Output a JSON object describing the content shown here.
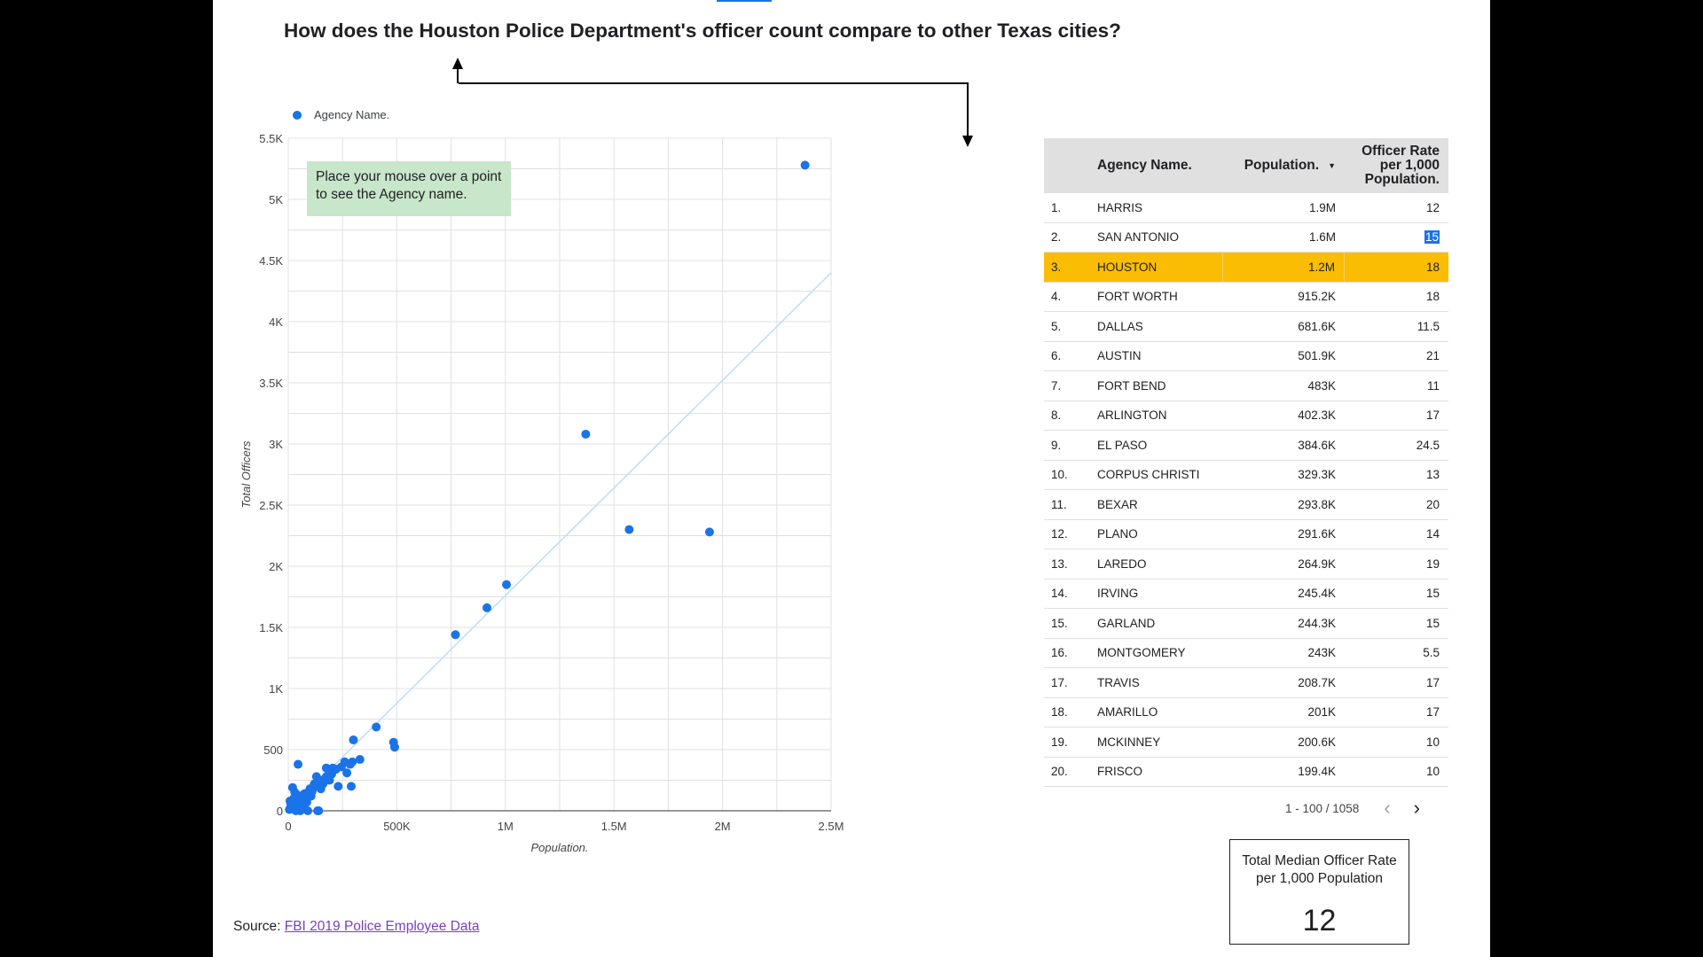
{
  "page": {
    "title": "How does the Houston Police Department's officer count compare to other Texas cities?",
    "hint": "Place your mouse over a point to see the Agency name.",
    "legend_label": "Agency Name.",
    "source_prefix": "Source: ",
    "source_link": "FBI 2019 Police Employee Data"
  },
  "chart_data": {
    "type": "scatter",
    "xlabel": "Population.",
    "ylabel": "Total Officers",
    "xlim": [
      0,
      2500000
    ],
    "ylim": [
      0,
      5500
    ],
    "x_ticks": [
      "0",
      "500K",
      "1M",
      "1.5M",
      "2M",
      "2.5M"
    ],
    "y_ticks": [
      "0",
      "500",
      "1K",
      "1.5K",
      "2K",
      "2.5K",
      "3K",
      "3.5K",
      "4K",
      "4.5K",
      "5K",
      "5.5K"
    ],
    "series_color": "#1a73e8",
    "trendline_color": "#bbdefb",
    "trendline": [
      [
        0,
        0
      ],
      [
        2500000,
        4400
      ]
    ],
    "grid": true,
    "points": [
      [
        2380000,
        5280
      ],
      [
        1370000,
        3080
      ],
      [
        1570000,
        2300
      ],
      [
        1940000,
        2280
      ],
      [
        1005000,
        1850
      ],
      [
        915000,
        1660
      ],
      [
        770000,
        1440
      ],
      [
        405000,
        685
      ],
      [
        485000,
        560
      ],
      [
        490000,
        520
      ],
      [
        300000,
        580
      ],
      [
        330000,
        420
      ],
      [
        295000,
        400
      ],
      [
        285000,
        380
      ],
      [
        245000,
        360
      ],
      [
        270000,
        310
      ],
      [
        205000,
        350
      ],
      [
        200000,
        300
      ],
      [
        175000,
        280
      ],
      [
        155000,
        250
      ],
      [
        140000,
        240
      ],
      [
        120000,
        220
      ],
      [
        100000,
        180
      ],
      [
        90000,
        150
      ],
      [
        80000,
        120
      ],
      [
        60000,
        90
      ],
      [
        45000,
        380
      ],
      [
        290000,
        200
      ],
      [
        20000,
        190
      ],
      [
        30000,
        150
      ],
      [
        25000,
        100
      ],
      [
        40000,
        60
      ],
      [
        50000,
        40
      ],
      [
        15000,
        30
      ],
      [
        10000,
        20
      ],
      [
        5000,
        10
      ],
      [
        70000,
        100
      ],
      [
        110000,
        160
      ],
      [
        135000,
        200
      ],
      [
        160000,
        220
      ],
      [
        190000,
        250
      ],
      [
        260000,
        400
      ],
      [
        175000,
        350
      ],
      [
        130000,
        280
      ],
      [
        35000,
        0
      ],
      [
        55000,
        0
      ],
      [
        90000,
        0
      ],
      [
        135000,
        0
      ],
      [
        140000,
        0
      ],
      [
        65000,
        30
      ],
      [
        85000,
        70
      ],
      [
        150000,
        180
      ],
      [
        220000,
        340
      ],
      [
        230000,
        200
      ],
      [
        105000,
        120
      ],
      [
        12000,
        50
      ],
      [
        8000,
        80
      ],
      [
        42000,
        130
      ],
      [
        58000,
        60
      ],
      [
        75000,
        140
      ]
    ]
  },
  "table": {
    "headers": {
      "name": "Agency Name.",
      "population": "Population.",
      "sort_indicator": "▼",
      "rate_line1": "Officer Rate",
      "rate_line2": "per 1,000",
      "rate_line3": "Population."
    },
    "highlight_color": "#fbbc04",
    "rows": [
      {
        "idx": "1.",
        "name": "HARRIS",
        "population": "1.9M",
        "rate": "12"
      },
      {
        "idx": "2.",
        "name": "SAN ANTONIO",
        "population": "1.6M",
        "rate": "15"
      },
      {
        "idx": "3.",
        "name": "HOUSTON",
        "population": "1.2M",
        "rate": "18"
      },
      {
        "idx": "4.",
        "name": "FORT WORTH",
        "population": "915.2K",
        "rate": "18"
      },
      {
        "idx": "5.",
        "name": "DALLAS",
        "population": "681.6K",
        "rate": "11.5"
      },
      {
        "idx": "6.",
        "name": "AUSTIN",
        "population": "501.9K",
        "rate": "21"
      },
      {
        "idx": "7.",
        "name": "FORT BEND",
        "population": "483K",
        "rate": "11"
      },
      {
        "idx": "8.",
        "name": "ARLINGTON",
        "population": "402.3K",
        "rate": "17"
      },
      {
        "idx": "9.",
        "name": "EL PASO",
        "population": "384.6K",
        "rate": "24.5"
      },
      {
        "idx": "10.",
        "name": "CORPUS CHRISTI",
        "population": "329.3K",
        "rate": "13"
      },
      {
        "idx": "11.",
        "name": "BEXAR",
        "population": "293.8K",
        "rate": "20"
      },
      {
        "idx": "12.",
        "name": "PLANO",
        "population": "291.6K",
        "rate": "14"
      },
      {
        "idx": "13.",
        "name": "LAREDO",
        "population": "264.9K",
        "rate": "19"
      },
      {
        "idx": "14.",
        "name": "IRVING",
        "population": "245.4K",
        "rate": "15"
      },
      {
        "idx": "15.",
        "name": "GARLAND",
        "population": "244.3K",
        "rate": "15"
      },
      {
        "idx": "16.",
        "name": "MONTGOMERY",
        "population": "243K",
        "rate": "5.5"
      },
      {
        "idx": "17.",
        "name": "TRAVIS",
        "population": "208.7K",
        "rate": "17"
      },
      {
        "idx": "18.",
        "name": "AMARILLO",
        "population": "201K",
        "rate": "17"
      },
      {
        "idx": "19.",
        "name": "MCKINNEY",
        "population": "200.6K",
        "rate": "10"
      },
      {
        "idx": "20.",
        "name": "FRISCO",
        "population": "199.4K",
        "rate": "10"
      }
    ],
    "highlight_row": 2,
    "selected_rate_row": 1
  },
  "pager": {
    "range": "1 - 100 / 1058",
    "prev_icon": "‹",
    "next_icon": "›"
  },
  "kpi": {
    "label": "Total Median Officer Rate per 1,000 Population",
    "value": "12"
  }
}
